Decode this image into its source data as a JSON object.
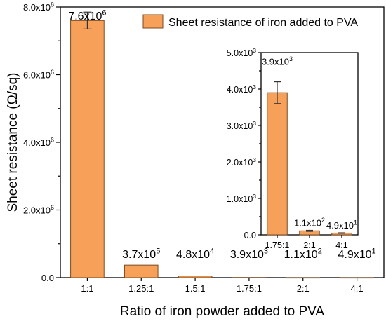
{
  "chart_data": [
    {
      "type": "bar",
      "title": "",
      "xlabel": "Ratio of iron powder added to PVA",
      "ylabel": "Sheet resistance (Ω/sq)",
      "categories": [
        "1:1",
        "1.25:1",
        "1.5:1",
        "1.75:1",
        "2:1",
        "4:1"
      ],
      "series": [
        {
          "name": "Sheet resistance of iron added to PVA",
          "values": [
            7600000,
            370000,
            48000,
            3900,
            110,
            49
          ],
          "errors": [
            250000,
            0,
            0,
            0,
            0,
            0
          ],
          "labels": [
            {
              "base": "7.6x10",
              "exp": "6"
            },
            {
              "base": "3.7x10",
              "exp": "5"
            },
            {
              "base": "4.8x10",
              "exp": "4"
            },
            {
              "base": "3.9x10",
              "exp": "3"
            },
            {
              "base": "1.1x10",
              "exp": "2"
            },
            {
              "base": "4.9x10",
              "exp": "1"
            }
          ]
        }
      ],
      "ylim": [
        0,
        8000000
      ],
      "yticks": [
        {
          "value": 0,
          "base": "0.0",
          "exp": ""
        },
        {
          "value": 2000000,
          "base": "2.0x10",
          "exp": "6"
        },
        {
          "value": 4000000,
          "base": "4.0x10",
          "exp": "6"
        },
        {
          "value": 6000000,
          "base": "6.0x10",
          "exp": "6"
        },
        {
          "value": 8000000,
          "base": "8.0x10",
          "exp": "6"
        }
      ],
      "legend": "top-right",
      "grid": false,
      "colors": {
        "bar": "#f7a05a",
        "bar_edge": "#7a4a1f"
      }
    },
    {
      "type": "bar",
      "title": "",
      "xlabel": "",
      "ylabel": "",
      "categories": [
        "1.75:1",
        "2:1",
        "4:1"
      ],
      "series": [
        {
          "values": [
            3900,
            110,
            49
          ],
          "errors": [
            300,
            15,
            8
          ],
          "labels": [
            {
              "base": "3.9x10",
              "exp": "3"
            },
            {
              "base": "1.1x10",
              "exp": "2"
            },
            {
              "base": "4.9x10",
              "exp": "1"
            }
          ]
        }
      ],
      "ylim": [
        0,
        5000
      ],
      "yticks": [
        {
          "value": 0,
          "base": "0.0",
          "exp": ""
        },
        {
          "value": 1000,
          "base": "1.0x10",
          "exp": "3"
        },
        {
          "value": 2000,
          "base": "2.0x10",
          "exp": "3"
        },
        {
          "value": 3000,
          "base": "3.0x10",
          "exp": "3"
        },
        {
          "value": 4000,
          "base": "4.0x10",
          "exp": "3"
        },
        {
          "value": 5000,
          "base": "5.0x10",
          "exp": "3"
        }
      ],
      "placement": "inset",
      "grid": false
    }
  ]
}
